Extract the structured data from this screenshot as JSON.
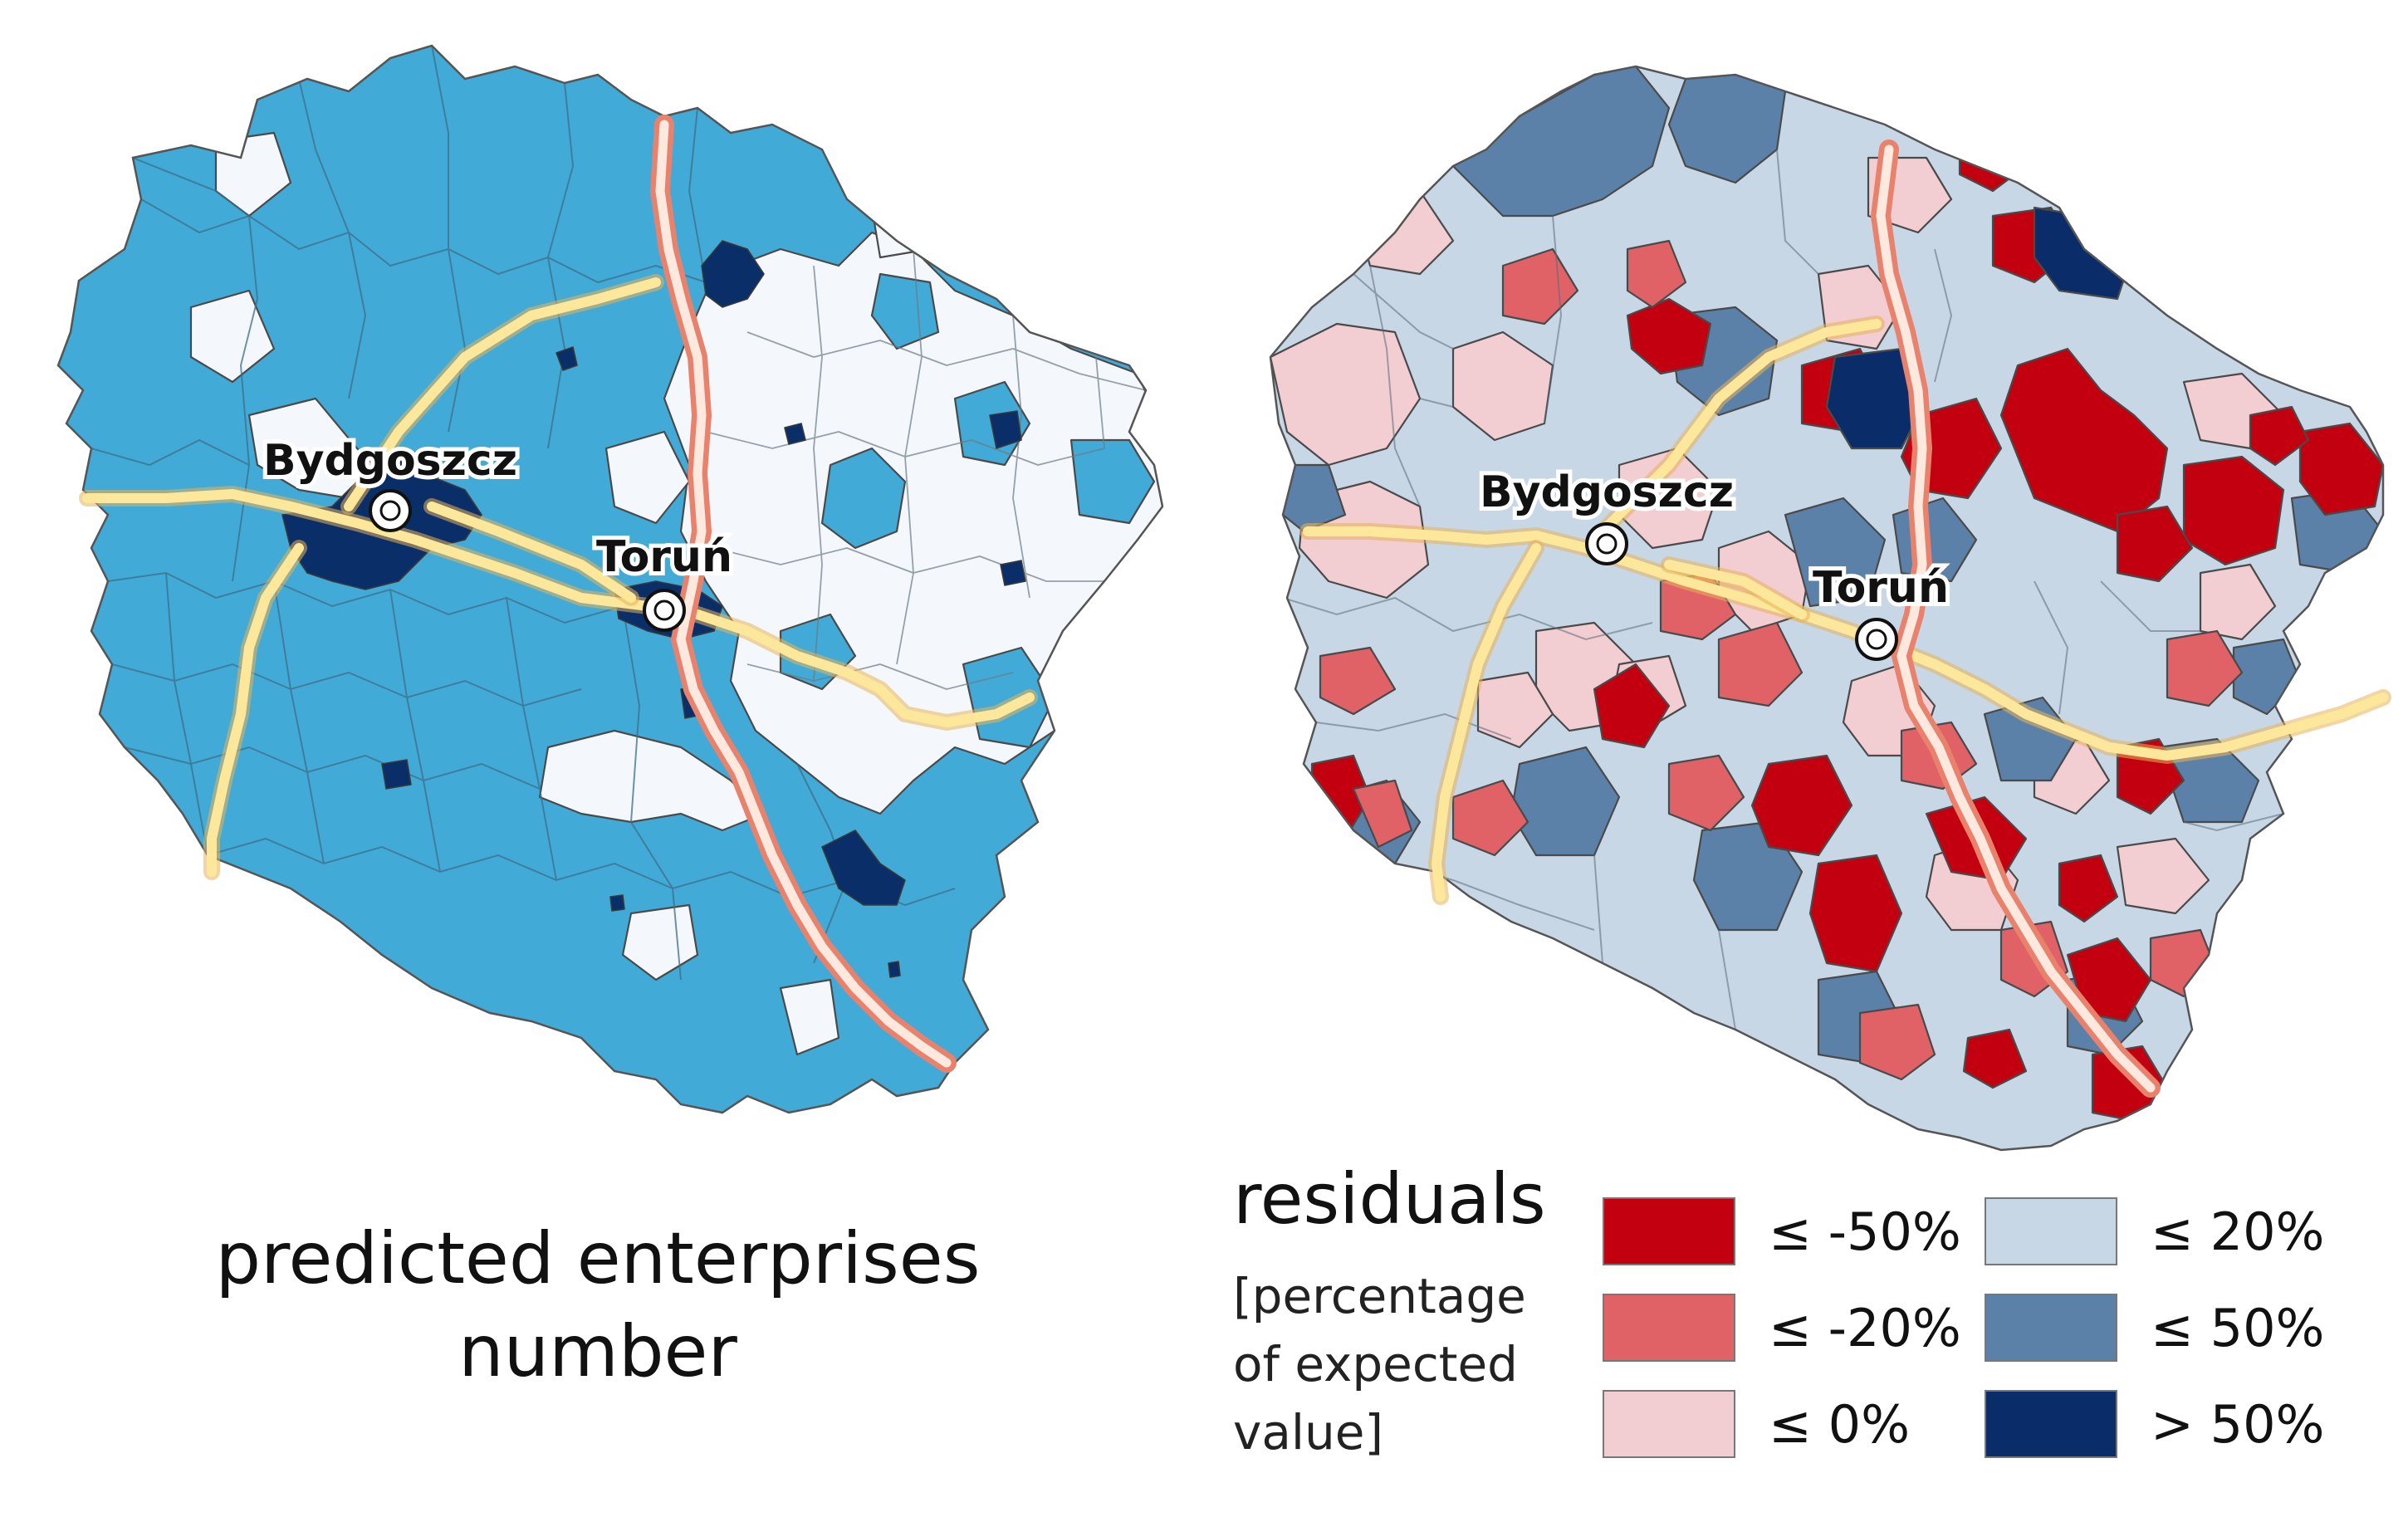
{
  "left_map": {
    "caption_line1": "predicted enterprises",
    "caption_line2": "number",
    "colors": {
      "mid": "#42aad6",
      "light": "#f4f8fc",
      "dark": "#0a2e68"
    }
  },
  "right_map": {
    "legend_title": "residuals",
    "legend_sub_line1": "[percentage",
    "legend_sub_line2": "of expected",
    "legend_sub_line3": "value]",
    "legend": [
      {
        "label": "≤ -50%",
        "color": "#c30010"
      },
      {
        "label": "≤ -20%",
        "color": "#e06266"
      },
      {
        "label": "≤ 0%",
        "color": "#f2cdd1"
      },
      {
        "label": "≤ 20%",
        "color": "#c7d7e5"
      },
      {
        "label": "≤ 50%",
        "color": "#5b81a8"
      },
      {
        "label": "> 50%",
        "color": "#0a2c68"
      }
    ]
  },
  "cities": {
    "bydgoszcz": "Bydgoszcz",
    "torun": "Toruń"
  },
  "road_colors": {
    "main_road": "#fde79a",
    "motorway": "#e9826d"
  }
}
